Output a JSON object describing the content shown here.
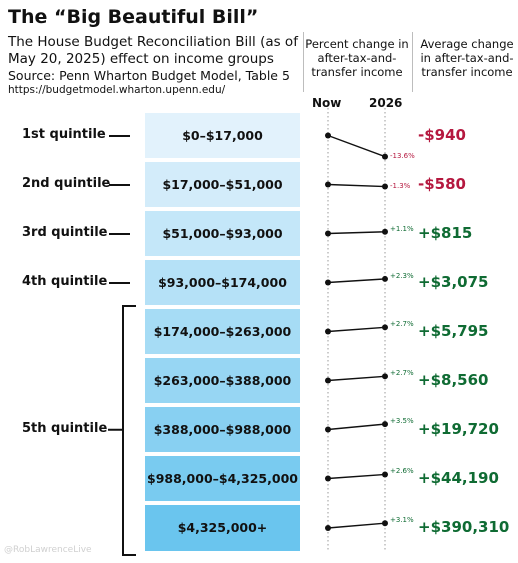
{
  "header": {
    "title": "The “Big Beautiful Bill”",
    "subtitle_line1": "The House Budget Reconciliation Bill (as of",
    "subtitle_line2": "May 20, 2025) effect on income groups",
    "source": "Source: Penn Wharton Budget Model, Table 5",
    "url": "https://budgetmodel.wharton.upenn.edu/"
  },
  "column_headers": {
    "percent_change": [
      "Percent change in",
      "after-tax-and-",
      "transfer income"
    ],
    "average_change": [
      "Average change",
      "in after-tax-and-",
      "transfer income"
    ]
  },
  "credit": "@RobLawrenceLive",
  "colors": {
    "band_light": "#e2f2fc",
    "band_dark": "#6ac5ee",
    "negative": "#b5183f",
    "positive": "#0f6b33"
  },
  "chart_data": {
    "type": "line",
    "x": [
      "Now",
      "2026"
    ],
    "quintiles": [
      {
        "label": "1st quintile",
        "brackets": [
          0
        ]
      },
      {
        "label": "2nd quintile",
        "brackets": [
          1
        ]
      },
      {
        "label": "3rd quintile",
        "brackets": [
          2
        ]
      },
      {
        "label": "4th quintile",
        "brackets": [
          3
        ]
      },
      {
        "label": "5th quintile",
        "brackets": [
          4,
          5,
          6,
          7,
          8
        ]
      }
    ],
    "series": [
      {
        "range": "$0–$17,000",
        "pct_change": -13.6,
        "pct_label": "-13.6%",
        "avg_change": -940,
        "avg_label": "-$940"
      },
      {
        "range": "$17,000–$51,000",
        "pct_change": -1.3,
        "pct_label": "-1.3%",
        "avg_change": -580,
        "avg_label": "-$580"
      },
      {
        "range": "$51,000–$93,000",
        "pct_change": 1.1,
        "pct_label": "+1.1%",
        "avg_change": 815,
        "avg_label": "+$815"
      },
      {
        "range": "$93,000–$174,000",
        "pct_change": 2.3,
        "pct_label": "+2.3%",
        "avg_change": 3075,
        "avg_label": "+$3,075"
      },
      {
        "range": "$174,000–$263,000",
        "pct_change": 2.7,
        "pct_label": "+2.7%",
        "avg_change": 5795,
        "avg_label": "+$5,795"
      },
      {
        "range": "$263,000–$388,000",
        "pct_change": 2.7,
        "pct_label": "+2.7%",
        "avg_change": 8560,
        "avg_label": "+$8,560"
      },
      {
        "range": "$388,000–$988,000",
        "pct_change": 3.5,
        "pct_label": "+3.5%",
        "avg_change": 19720,
        "avg_label": "+$19,720"
      },
      {
        "range": "$988,000–$4,325,000",
        "pct_change": 2.6,
        "pct_label": "+2.6%",
        "avg_change": 44190,
        "avg_label": "+$44,190"
      },
      {
        "range": "$4,325,000+",
        "pct_change": 3.1,
        "pct_label": "+3.1%",
        "avg_change": 390310,
        "avg_label": "+$390,310"
      }
    ]
  }
}
